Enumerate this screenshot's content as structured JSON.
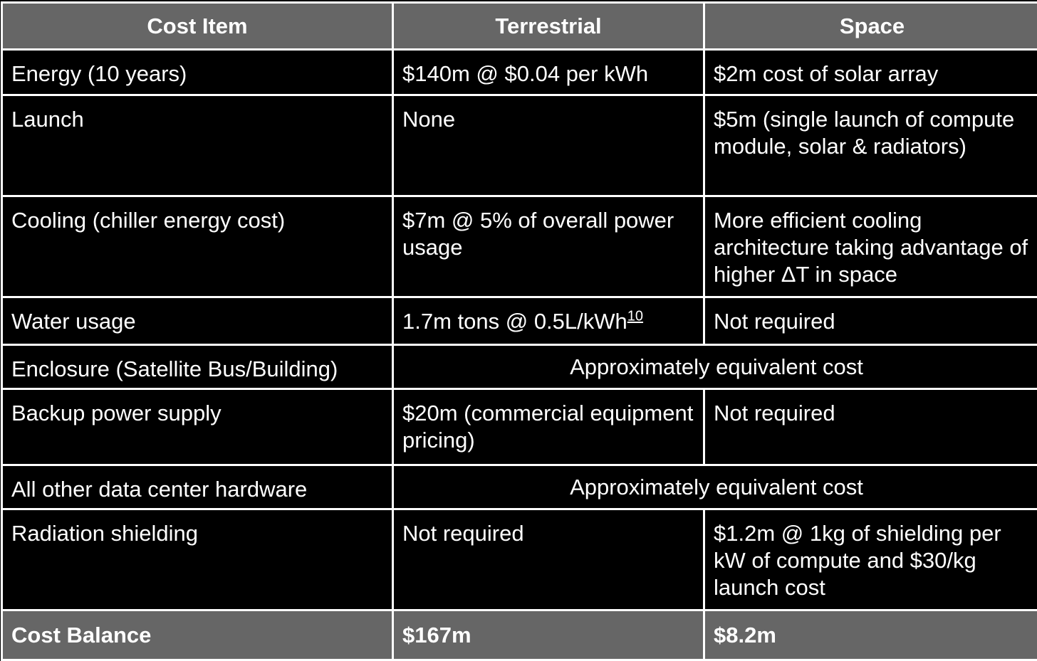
{
  "headers": [
    "Cost Item",
    "Terrestrial",
    "Space"
  ],
  "rows": {
    "energy": {
      "item": "Energy (10 years)",
      "terrestrial": "$140m @ $0.04 per kWh",
      "space": "$2m cost of solar array"
    },
    "launch": {
      "item": "Launch",
      "terrestrial": "None",
      "space": "$5m (single launch of compute module, solar & radiators)"
    },
    "cooling": {
      "item": "Cooling (chiller energy cost)",
      "terrestrial": "$7m @ 5% of overall power usage",
      "space": "More efficient cooling architecture taking advantage of higher ΔT in space"
    },
    "water": {
      "item": "Water usage",
      "terrestrial": "1.7m tons @ 0.5L/kWh",
      "terrestrial_note": "10",
      "space": "Not required"
    },
    "enclosure": {
      "item": "Enclosure (Satellite Bus/Building)",
      "shared": "Approximately equivalent cost"
    },
    "backup": {
      "item": "Backup power supply",
      "terrestrial": "$20m (commercial equipment pricing)",
      "space": "Not required"
    },
    "hardware": {
      "item": "All other data center hardware",
      "shared": "Approximately equivalent cost"
    },
    "radiation": {
      "item": "Radiation shielding",
      "terrestrial": "Not required",
      "space": "$1.2m @ 1kg of shielding per kW of compute and $30/kg launch cost"
    },
    "total": {
      "item": "Cost Balance",
      "terrestrial": "$167m",
      "space": "$8.2m"
    }
  },
  "colors": {
    "header_bg": "#666666",
    "body_bg": "#000000",
    "border": "#ffffff",
    "text": "#ffffff"
  }
}
